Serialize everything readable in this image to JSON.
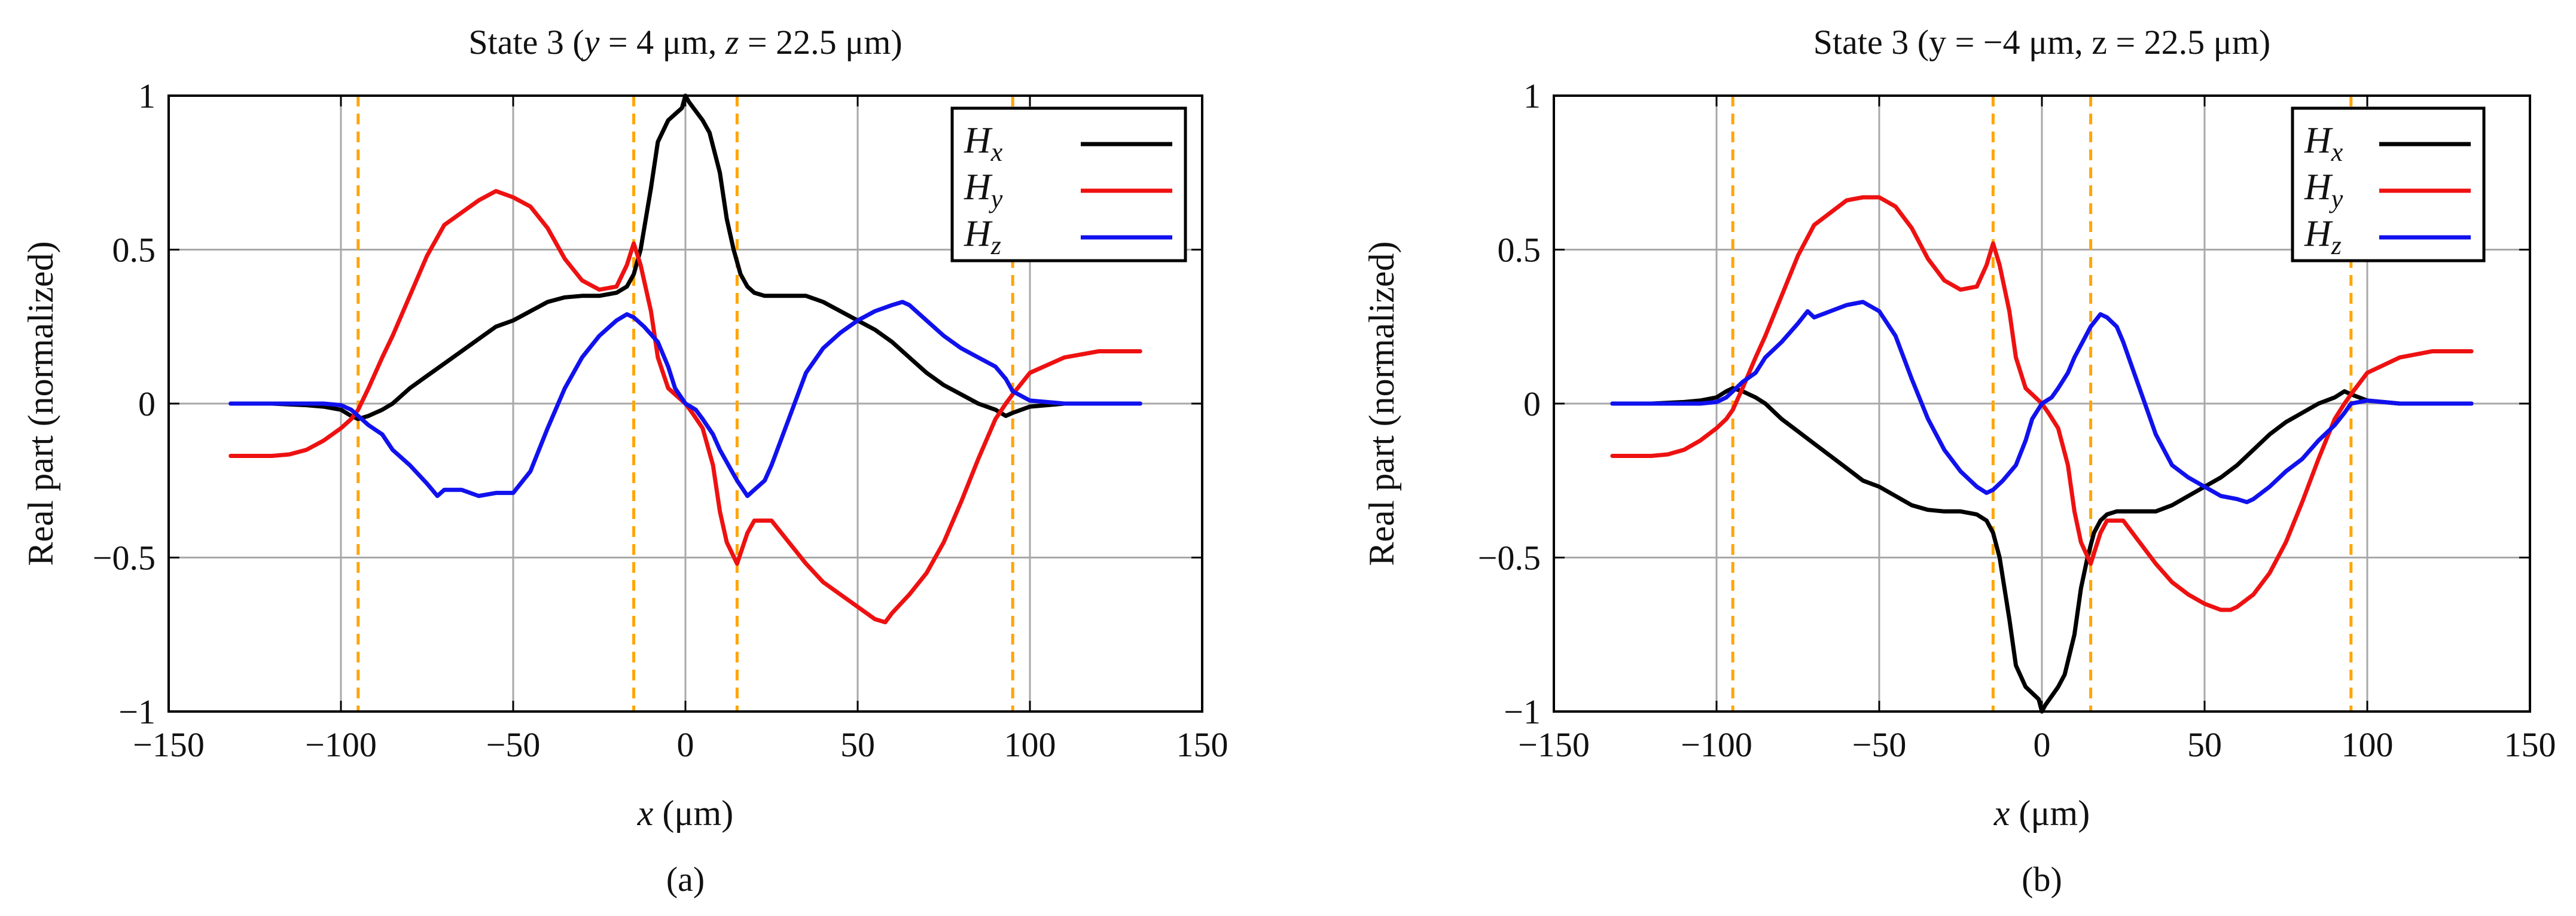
{
  "chart_data": [
    {
      "type": "line",
      "caption": "(a)",
      "title_parts": [
        "State 3 (",
        "y",
        " = 4 μm, ",
        "z",
        " = 22.5 μm)"
      ],
      "xlabel_parts": [
        "x",
        " (μm)"
      ],
      "ylabel": "Real part (normalized)",
      "xlim": [
        -150,
        150
      ],
      "ylim": [
        -1,
        1
      ],
      "xticks": [
        -150,
        -100,
        -50,
        0,
        50,
        100,
        150
      ],
      "xtick_labels": [
        "−150",
        "−100",
        "−50",
        "0",
        "50",
        "100",
        "150"
      ],
      "yticks": [
        -1,
        -0.5,
        0,
        0.5,
        1
      ],
      "ytick_labels": [
        "−1",
        "−0.5",
        "0",
        "0.5",
        "1"
      ],
      "grid": true,
      "legend_position": "top-right",
      "vlines": [
        -95,
        -15,
        15,
        95
      ],
      "vline_color": "#ffa500",
      "series": [
        {
          "name": "Hx",
          "name_main": "H",
          "name_sub": "x",
          "color": "#000000",
          "x": [
            -132,
            -120,
            -110,
            -105,
            -100,
            -97,
            -95,
            -92,
            -88,
            -85,
            -80,
            -75,
            -70,
            -65,
            -60,
            -55,
            -50,
            -45,
            -40,
            -35,
            -30,
            -25,
            -20,
            -17,
            -15,
            -13,
            -10,
            -8,
            -5,
            -3,
            -1,
            0,
            1,
            3,
            5,
            7,
            10,
            12,
            14,
            16,
            18,
            20,
            23,
            25,
            30,
            35,
            40,
            45,
            50,
            55,
            60,
            65,
            70,
            75,
            80,
            85,
            90,
            93,
            95,
            100,
            110,
            120,
            132
          ],
          "y": [
            0,
            0,
            -0.005,
            -0.01,
            -0.02,
            -0.04,
            -0.05,
            -0.04,
            -0.02,
            0,
            0.05,
            0.09,
            0.13,
            0.17,
            0.21,
            0.25,
            0.27,
            0.3,
            0.33,
            0.345,
            0.35,
            0.35,
            0.36,
            0.38,
            0.42,
            0.5,
            0.7,
            0.85,
            0.92,
            0.94,
            0.96,
            1.0,
            0.98,
            0.95,
            0.92,
            0.88,
            0.75,
            0.6,
            0.5,
            0.42,
            0.38,
            0.36,
            0.35,
            0.35,
            0.35,
            0.35,
            0.33,
            0.3,
            0.27,
            0.24,
            0.2,
            0.15,
            0.1,
            0.06,
            0.03,
            0.0,
            -0.02,
            -0.04,
            -0.03,
            -0.01,
            0,
            0,
            0
          ]
        },
        {
          "name": "Hy",
          "name_main": "H",
          "name_sub": "y",
          "color": "#ee1111",
          "x": [
            -132,
            -125,
            -120,
            -115,
            -110,
            -105,
            -100,
            -97,
            -95,
            -92,
            -88,
            -85,
            -80,
            -75,
            -70,
            -65,
            -60,
            -55,
            -50,
            -45,
            -40,
            -35,
            -30,
            -25,
            -20,
            -17,
            -15,
            -13,
            -10,
            -8,
            -5,
            -2,
            0,
            2,
            5,
            8,
            10,
            12,
            15,
            18,
            20,
            25,
            30,
            35,
            40,
            45,
            50,
            55,
            58,
            60,
            65,
            70,
            75,
            80,
            85,
            90,
            93,
            95,
            100,
            110,
            120,
            132
          ],
          "y": [
            -0.17,
            -0.17,
            -0.17,
            -0.165,
            -0.15,
            -0.12,
            -0.08,
            -0.05,
            -0.02,
            0.05,
            0.15,
            0.22,
            0.35,
            0.48,
            0.58,
            0.62,
            0.66,
            0.69,
            0.67,
            0.64,
            0.57,
            0.47,
            0.4,
            0.37,
            0.38,
            0.45,
            0.52,
            0.45,
            0.3,
            0.15,
            0.05,
            0.02,
            0.0,
            -0.03,
            -0.08,
            -0.2,
            -0.35,
            -0.45,
            -0.52,
            -0.42,
            -0.38,
            -0.38,
            -0.45,
            -0.52,
            -0.58,
            -0.62,
            -0.66,
            -0.7,
            -0.71,
            -0.68,
            -0.62,
            -0.55,
            -0.45,
            -0.32,
            -0.18,
            -0.05,
            0.0,
            0.03,
            0.1,
            0.15,
            0.17,
            0.17
          ]
        },
        {
          "name": "Hz",
          "name_main": "H",
          "name_sub": "z",
          "color": "#1111ee",
          "x": [
            -132,
            -120,
            -110,
            -105,
            -100,
            -97,
            -95,
            -92,
            -88,
            -85,
            -80,
            -75,
            -72,
            -70,
            -65,
            -60,
            -55,
            -50,
            -45,
            -40,
            -35,
            -30,
            -25,
            -20,
            -17,
            -15,
            -12,
            -8,
            -5,
            -3,
            0,
            3,
            5,
            8,
            10,
            15,
            18,
            20,
            23,
            25,
            30,
            35,
            40,
            45,
            50,
            55,
            60,
            63,
            65,
            70,
            75,
            80,
            85,
            90,
            93,
            95,
            100,
            110,
            120,
            132
          ],
          "y": [
            0,
            0,
            0,
            0,
            -0.005,
            -0.02,
            -0.04,
            -0.07,
            -0.1,
            -0.15,
            -0.2,
            -0.26,
            -0.3,
            -0.28,
            -0.28,
            -0.3,
            -0.29,
            -0.29,
            -0.22,
            -0.08,
            0.05,
            0.15,
            0.22,
            0.27,
            0.29,
            0.28,
            0.25,
            0.2,
            0.12,
            0.05,
            0.0,
            -0.02,
            -0.05,
            -0.1,
            -0.15,
            -0.25,
            -0.3,
            -0.28,
            -0.25,
            -0.2,
            -0.05,
            0.1,
            0.18,
            0.23,
            0.27,
            0.3,
            0.32,
            0.33,
            0.32,
            0.27,
            0.22,
            0.18,
            0.15,
            0.12,
            0.08,
            0.04,
            0.01,
            0,
            0,
            0
          ]
        }
      ]
    },
    {
      "type": "line",
      "caption": "(b)",
      "title_parts": [
        "State 3 (y = −4 μm, z = 22.5 μm)"
      ],
      "xlabel_parts": [
        "x",
        " (μm)"
      ],
      "ylabel": "Real part (normalized)",
      "xlim": [
        -150,
        150
      ],
      "ylim": [
        -1,
        1
      ],
      "xticks": [
        -150,
        -100,
        -50,
        0,
        50,
        100,
        150
      ],
      "xtick_labels": [
        "−150",
        "−100",
        "−50",
        "0",
        "50",
        "100",
        "150"
      ],
      "yticks": [
        -1,
        -0.5,
        0,
        0.5,
        1
      ],
      "ytick_labels": [
        "−1",
        "−0.5",
        "0",
        "0.5",
        "1"
      ],
      "grid": true,
      "legend_position": "top-right",
      "vlines": [
        -95,
        -15,
        15,
        95
      ],
      "vline_color": "#ffa500",
      "series": [
        {
          "name": "Hx",
          "name_main": "H",
          "name_sub": "x",
          "color": "#000000",
          "x": [
            -132,
            -120,
            -110,
            -105,
            -100,
            -97,
            -95,
            -92,
            -88,
            -85,
            -80,
            -75,
            -70,
            -65,
            -60,
            -55,
            -50,
            -45,
            -40,
            -35,
            -30,
            -25,
            -20,
            -17,
            -15,
            -13,
            -10,
            -8,
            -5,
            -3,
            -1,
            0,
            1,
            3,
            5,
            7,
            10,
            12,
            14,
            16,
            18,
            20,
            23,
            25,
            30,
            35,
            40,
            45,
            50,
            55,
            60,
            65,
            70,
            75,
            80,
            85,
            90,
            93,
            95,
            100,
            110,
            120,
            132
          ],
          "y": [
            0,
            0,
            0.005,
            0.01,
            0.02,
            0.04,
            0.05,
            0.04,
            0.02,
            0,
            -0.05,
            -0.09,
            -0.13,
            -0.17,
            -0.21,
            -0.25,
            -0.27,
            -0.3,
            -0.33,
            -0.345,
            -0.35,
            -0.35,
            -0.36,
            -0.38,
            -0.42,
            -0.5,
            -0.7,
            -0.85,
            -0.92,
            -0.94,
            -0.96,
            -1.0,
            -0.98,
            -0.95,
            -0.92,
            -0.88,
            -0.75,
            -0.6,
            -0.5,
            -0.42,
            -0.38,
            -0.36,
            -0.35,
            -0.35,
            -0.35,
            -0.35,
            -0.33,
            -0.3,
            -0.27,
            -0.24,
            -0.2,
            -0.15,
            -0.1,
            -0.06,
            -0.03,
            0.0,
            0.02,
            0.04,
            0.03,
            0.01,
            0,
            0,
            0
          ]
        },
        {
          "name": "Hy",
          "name_main": "H",
          "name_sub": "y",
          "color": "#ee1111",
          "x": [
            -132,
            -125,
            -120,
            -115,
            -110,
            -105,
            -100,
            -97,
            -95,
            -92,
            -88,
            -85,
            -80,
            -75,
            -70,
            -65,
            -60,
            -55,
            -50,
            -45,
            -40,
            -35,
            -30,
            -25,
            -20,
            -17,
            -15,
            -13,
            -10,
            -8,
            -5,
            -2,
            0,
            2,
            5,
            8,
            10,
            12,
            15,
            18,
            20,
            25,
            30,
            35,
            40,
            45,
            50,
            55,
            58,
            60,
            65,
            70,
            75,
            80,
            85,
            90,
            93,
            95,
            100,
            110,
            120,
            132
          ],
          "y": [
            -0.17,
            -0.17,
            -0.17,
            -0.165,
            -0.15,
            -0.12,
            -0.08,
            -0.05,
            -0.02,
            0.05,
            0.15,
            0.22,
            0.35,
            0.48,
            0.58,
            0.62,
            0.66,
            0.67,
            0.67,
            0.64,
            0.57,
            0.47,
            0.4,
            0.37,
            0.38,
            0.45,
            0.52,
            0.45,
            0.3,
            0.15,
            0.05,
            0.02,
            0.0,
            -0.03,
            -0.08,
            -0.2,
            -0.35,
            -0.45,
            -0.52,
            -0.42,
            -0.38,
            -0.38,
            -0.45,
            -0.52,
            -0.58,
            -0.62,
            -0.65,
            -0.67,
            -0.67,
            -0.66,
            -0.62,
            -0.55,
            -0.45,
            -0.32,
            -0.18,
            -0.05,
            0.0,
            0.03,
            0.1,
            0.15,
            0.17,
            0.17
          ]
        },
        {
          "name": "Hz",
          "name_main": "H",
          "name_sub": "z",
          "color": "#1111ee",
          "x": [
            -132,
            -120,
            -110,
            -105,
            -100,
            -97,
            -95,
            -92,
            -88,
            -85,
            -80,
            -75,
            -72,
            -70,
            -65,
            -60,
            -55,
            -50,
            -45,
            -40,
            -35,
            -30,
            -25,
            -20,
            -17,
            -15,
            -12,
            -8,
            -5,
            -3,
            0,
            3,
            5,
            8,
            10,
            15,
            18,
            20,
            23,
            25,
            30,
            35,
            40,
            45,
            50,
            55,
            60,
            63,
            65,
            70,
            75,
            80,
            85,
            90,
            93,
            95,
            100,
            110,
            120,
            132
          ],
          "y": [
            0,
            0,
            0,
            0,
            0.005,
            0.02,
            0.04,
            0.07,
            0.1,
            0.15,
            0.2,
            0.26,
            0.3,
            0.28,
            0.3,
            0.32,
            0.33,
            0.3,
            0.22,
            0.08,
            -0.05,
            -0.15,
            -0.22,
            -0.27,
            -0.29,
            -0.28,
            -0.25,
            -0.2,
            -0.12,
            -0.05,
            0.0,
            0.02,
            0.05,
            0.1,
            0.15,
            0.25,
            0.29,
            0.28,
            0.25,
            0.2,
            0.05,
            -0.1,
            -0.2,
            -0.24,
            -0.27,
            -0.3,
            -0.31,
            -0.32,
            -0.31,
            -0.27,
            -0.22,
            -0.18,
            -0.12,
            -0.07,
            -0.03,
            0.0,
            0.01,
            0,
            0,
            0
          ]
        }
      ]
    }
  ]
}
